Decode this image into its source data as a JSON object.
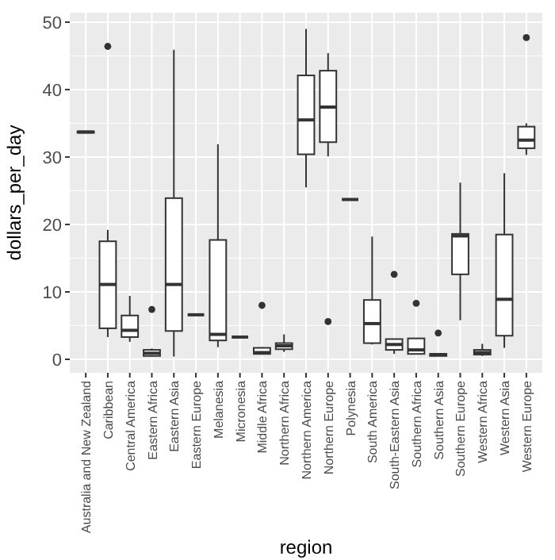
{
  "chart_data": {
    "type": "box",
    "xlabel": "region",
    "ylabel": "dollars_per_day",
    "categories": [
      "Australia and New Zealand",
      "Caribbean",
      "Central America",
      "Eastern Africa",
      "Eastern Asia",
      "Eastern Europe",
      "Melanesia",
      "Micronesia",
      "Middle Africa",
      "Northern Africa",
      "Northern America",
      "Northern Europe",
      "Polynesia",
      "South America",
      "South-Eastern Asia",
      "Southern Africa",
      "Southern Asia",
      "Southern Europe",
      "Western Africa",
      "Western Asia",
      "Western Europe"
    ],
    "boxes": [
      {
        "low": 33.6,
        "q1": 33.6,
        "median": 33.7,
        "q3": 33.8,
        "high": 33.8
      },
      {
        "low": 3.3,
        "q1": 4.6,
        "median": 11.1,
        "q3": 17.5,
        "high": 19.2,
        "outliers": [
          46.4
        ]
      },
      {
        "low": 2.6,
        "q1": 3.3,
        "median": 4.3,
        "q3": 6.5,
        "high": 9.4
      },
      {
        "low": 0.4,
        "q1": 0.5,
        "median": 0.9,
        "q3": 1.4,
        "high": 1.6,
        "outliers": [
          7.4
        ]
      },
      {
        "low": 0.4,
        "q1": 4.2,
        "median": 11.1,
        "q3": 23.9,
        "high": 45.9
      },
      {
        "low": 6.6,
        "q1": 6.6,
        "median": 6.6,
        "q3": 6.6,
        "high": 6.6
      },
      {
        "low": 1.8,
        "q1": 2.8,
        "median": 3.7,
        "q3": 17.7,
        "high": 31.9
      },
      {
        "low": 3.3,
        "q1": 3.3,
        "median": 3.3,
        "q3": 3.3,
        "high": 3.3
      },
      {
        "low": 0.7,
        "q1": 0.8,
        "median": 1.0,
        "q3": 1.7,
        "high": 1.8,
        "outliers": [
          8.0
        ]
      },
      {
        "low": 1.1,
        "q1": 1.5,
        "median": 2.0,
        "q3": 2.4,
        "high": 3.7
      },
      {
        "low": 25.5,
        "q1": 30.4,
        "median": 35.5,
        "q3": 42.1,
        "high": 49.0
      },
      {
        "low": 30.1,
        "q1": 32.2,
        "median": 37.4,
        "q3": 42.8,
        "high": 45.4,
        "outliers": [
          5.6
        ]
      },
      {
        "low": 23.7,
        "q1": 23.7,
        "median": 23.7,
        "q3": 23.7,
        "high": 23.7
      },
      {
        "low": 2.2,
        "q1": 2.4,
        "median": 5.3,
        "q3": 8.8,
        "high": 18.2
      },
      {
        "low": 0.8,
        "q1": 1.4,
        "median": 2.2,
        "q3": 3.0,
        "high": 3.0,
        "outliers": [
          12.6
        ]
      },
      {
        "low": 0.7,
        "q1": 0.8,
        "median": 1.4,
        "q3": 3.1,
        "high": 3.1,
        "outliers": [
          8.3
        ]
      },
      {
        "low": 0.5,
        "q1": 0.5,
        "median": 0.7,
        "q3": 0.8,
        "high": 0.8,
        "outliers": [
          3.9
        ]
      },
      {
        "low": 5.8,
        "q1": 12.6,
        "median": 18.3,
        "q3": 18.6,
        "high": 26.2
      },
      {
        "low": 0.5,
        "q1": 0.7,
        "median": 1.0,
        "q3": 1.4,
        "high": 2.3
      },
      {
        "low": 1.7,
        "q1": 3.5,
        "median": 8.9,
        "q3": 18.5,
        "high": 27.6
      },
      {
        "low": 30.3,
        "q1": 31.3,
        "median": 32.5,
        "q3": 34.5,
        "high": 35.0,
        "outliers": [
          47.7
        ]
      }
    ],
    "ylim": [
      -2,
      51.4
    ],
    "yticks": [
      0,
      10,
      20,
      30,
      40,
      50
    ],
    "grid": true
  }
}
